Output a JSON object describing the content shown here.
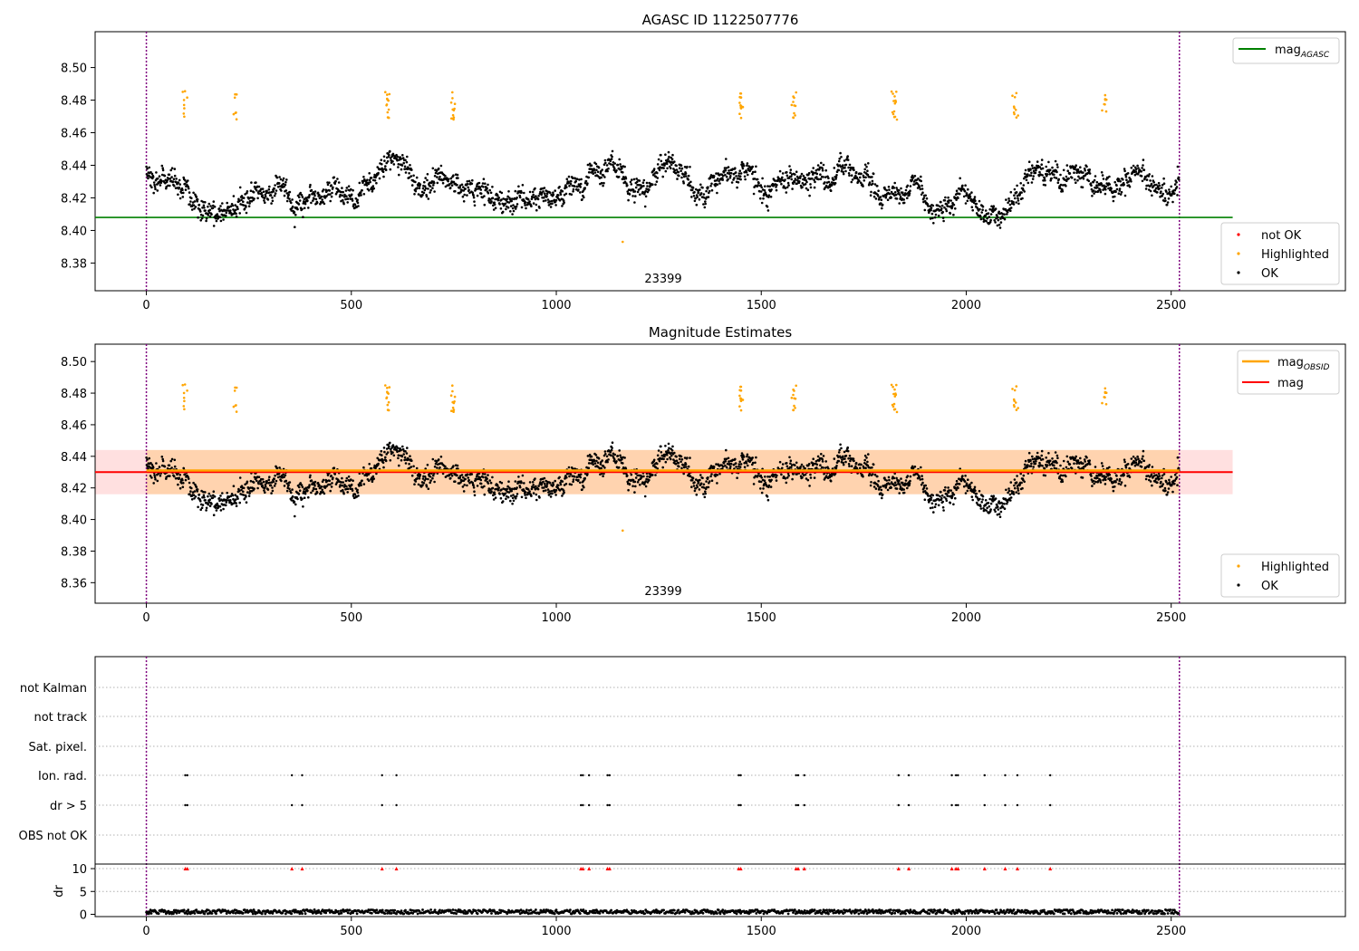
{
  "chart_data": [
    {
      "type": "scatter",
      "title": "AGASC ID 1122507776",
      "annotation": "23399",
      "xlim": [
        -125,
        2925
      ],
      "ylim": [
        8.363,
        8.522
      ],
      "x_ticks": [
        0,
        500,
        1000,
        1500,
        2000,
        2500
      ],
      "y_ticks": [
        8.38,
        8.4,
        8.42,
        8.44,
        8.46,
        8.48,
        8.5
      ],
      "vlines": [
        0,
        2520
      ],
      "reference_lines": [
        {
          "name": "mag",
          "subscript": "AGASC",
          "y": 8.408,
          "x_range": [
            -125,
            2650
          ],
          "color": "#008000"
        }
      ],
      "point_legend": [
        {
          "name": "not OK",
          "color": "#ff0000"
        },
        {
          "name": "Highlighted",
          "color": "#ffa500"
        },
        {
          "name": "OK",
          "color": "#000000"
        }
      ],
      "series": [
        {
          "name": "OK",
          "color": "#000000",
          "n": 2520,
          "x_range": [
            0,
            2520
          ],
          "y_range": [
            8.395,
            8.465
          ]
        },
        {
          "name": "Highlighted",
          "color": "#ffa500",
          "x_clusters": [
            92,
            218,
            590,
            750,
            1450,
            1580,
            1825,
            2120,
            2340
          ],
          "y_range": [
            8.392,
            8.488
          ]
        },
        {
          "name": "not OK",
          "color": "#ff0000",
          "n": 0
        }
      ]
    },
    {
      "type": "scatter",
      "title": "Magnitude Estimates",
      "annotation": "23399",
      "xlim": [
        -125,
        2925
      ],
      "ylim": [
        8.347,
        8.511
      ],
      "x_ticks": [
        0,
        500,
        1000,
        1500,
        2000,
        2500
      ],
      "y_ticks": [
        8.36,
        8.38,
        8.4,
        8.42,
        8.44,
        8.46,
        8.48,
        8.5
      ],
      "vlines": [
        0,
        2520
      ],
      "reference_lines": [
        {
          "name": "mag",
          "subscript": "OBSID",
          "y": 8.431,
          "x_range": [
            0,
            2520
          ],
          "color": "#ffa500",
          "band": [
            8.416,
            8.444
          ]
        },
        {
          "name": "mag",
          "subscript": "",
          "y": 8.43,
          "x_range": [
            -125,
            2650
          ],
          "color": "#ff0000",
          "band": [
            8.416,
            8.444
          ]
        }
      ],
      "point_legend": [
        {
          "name": "Highlighted",
          "color": "#ffa500"
        },
        {
          "name": "OK",
          "color": "#000000"
        }
      ]
    },
    {
      "type": "scatter",
      "title": "",
      "xlim": [
        -125,
        2925
      ],
      "x_ticks": [
        0,
        500,
        1000,
        1500,
        2000,
        2500
      ],
      "flag_rows": [
        "not Kalman",
        "not track",
        "Sat. pixel.",
        "Ion. rad.",
        "dr > 5",
        "OBS not OK"
      ],
      "flag_x": [
        95,
        100,
        355,
        380,
        575,
        610,
        1060,
        1065,
        1080,
        1125,
        1130,
        1445,
        1450,
        1585,
        1590,
        1605,
        1835,
        1860,
        1965,
        1975,
        1980,
        2045,
        2095,
        2125,
        2205
      ],
      "dr_ylabel": "dr",
      "dr_ylim": [
        -0.5,
        11
      ],
      "dr_ticks": [
        0,
        5,
        10
      ],
      "dr_typical_range": [
        0.1,
        1.0
      ],
      "dr_outlier_markers": {
        "y": 10,
        "color": "#ff0000",
        "marker": "triangle"
      }
    }
  ]
}
